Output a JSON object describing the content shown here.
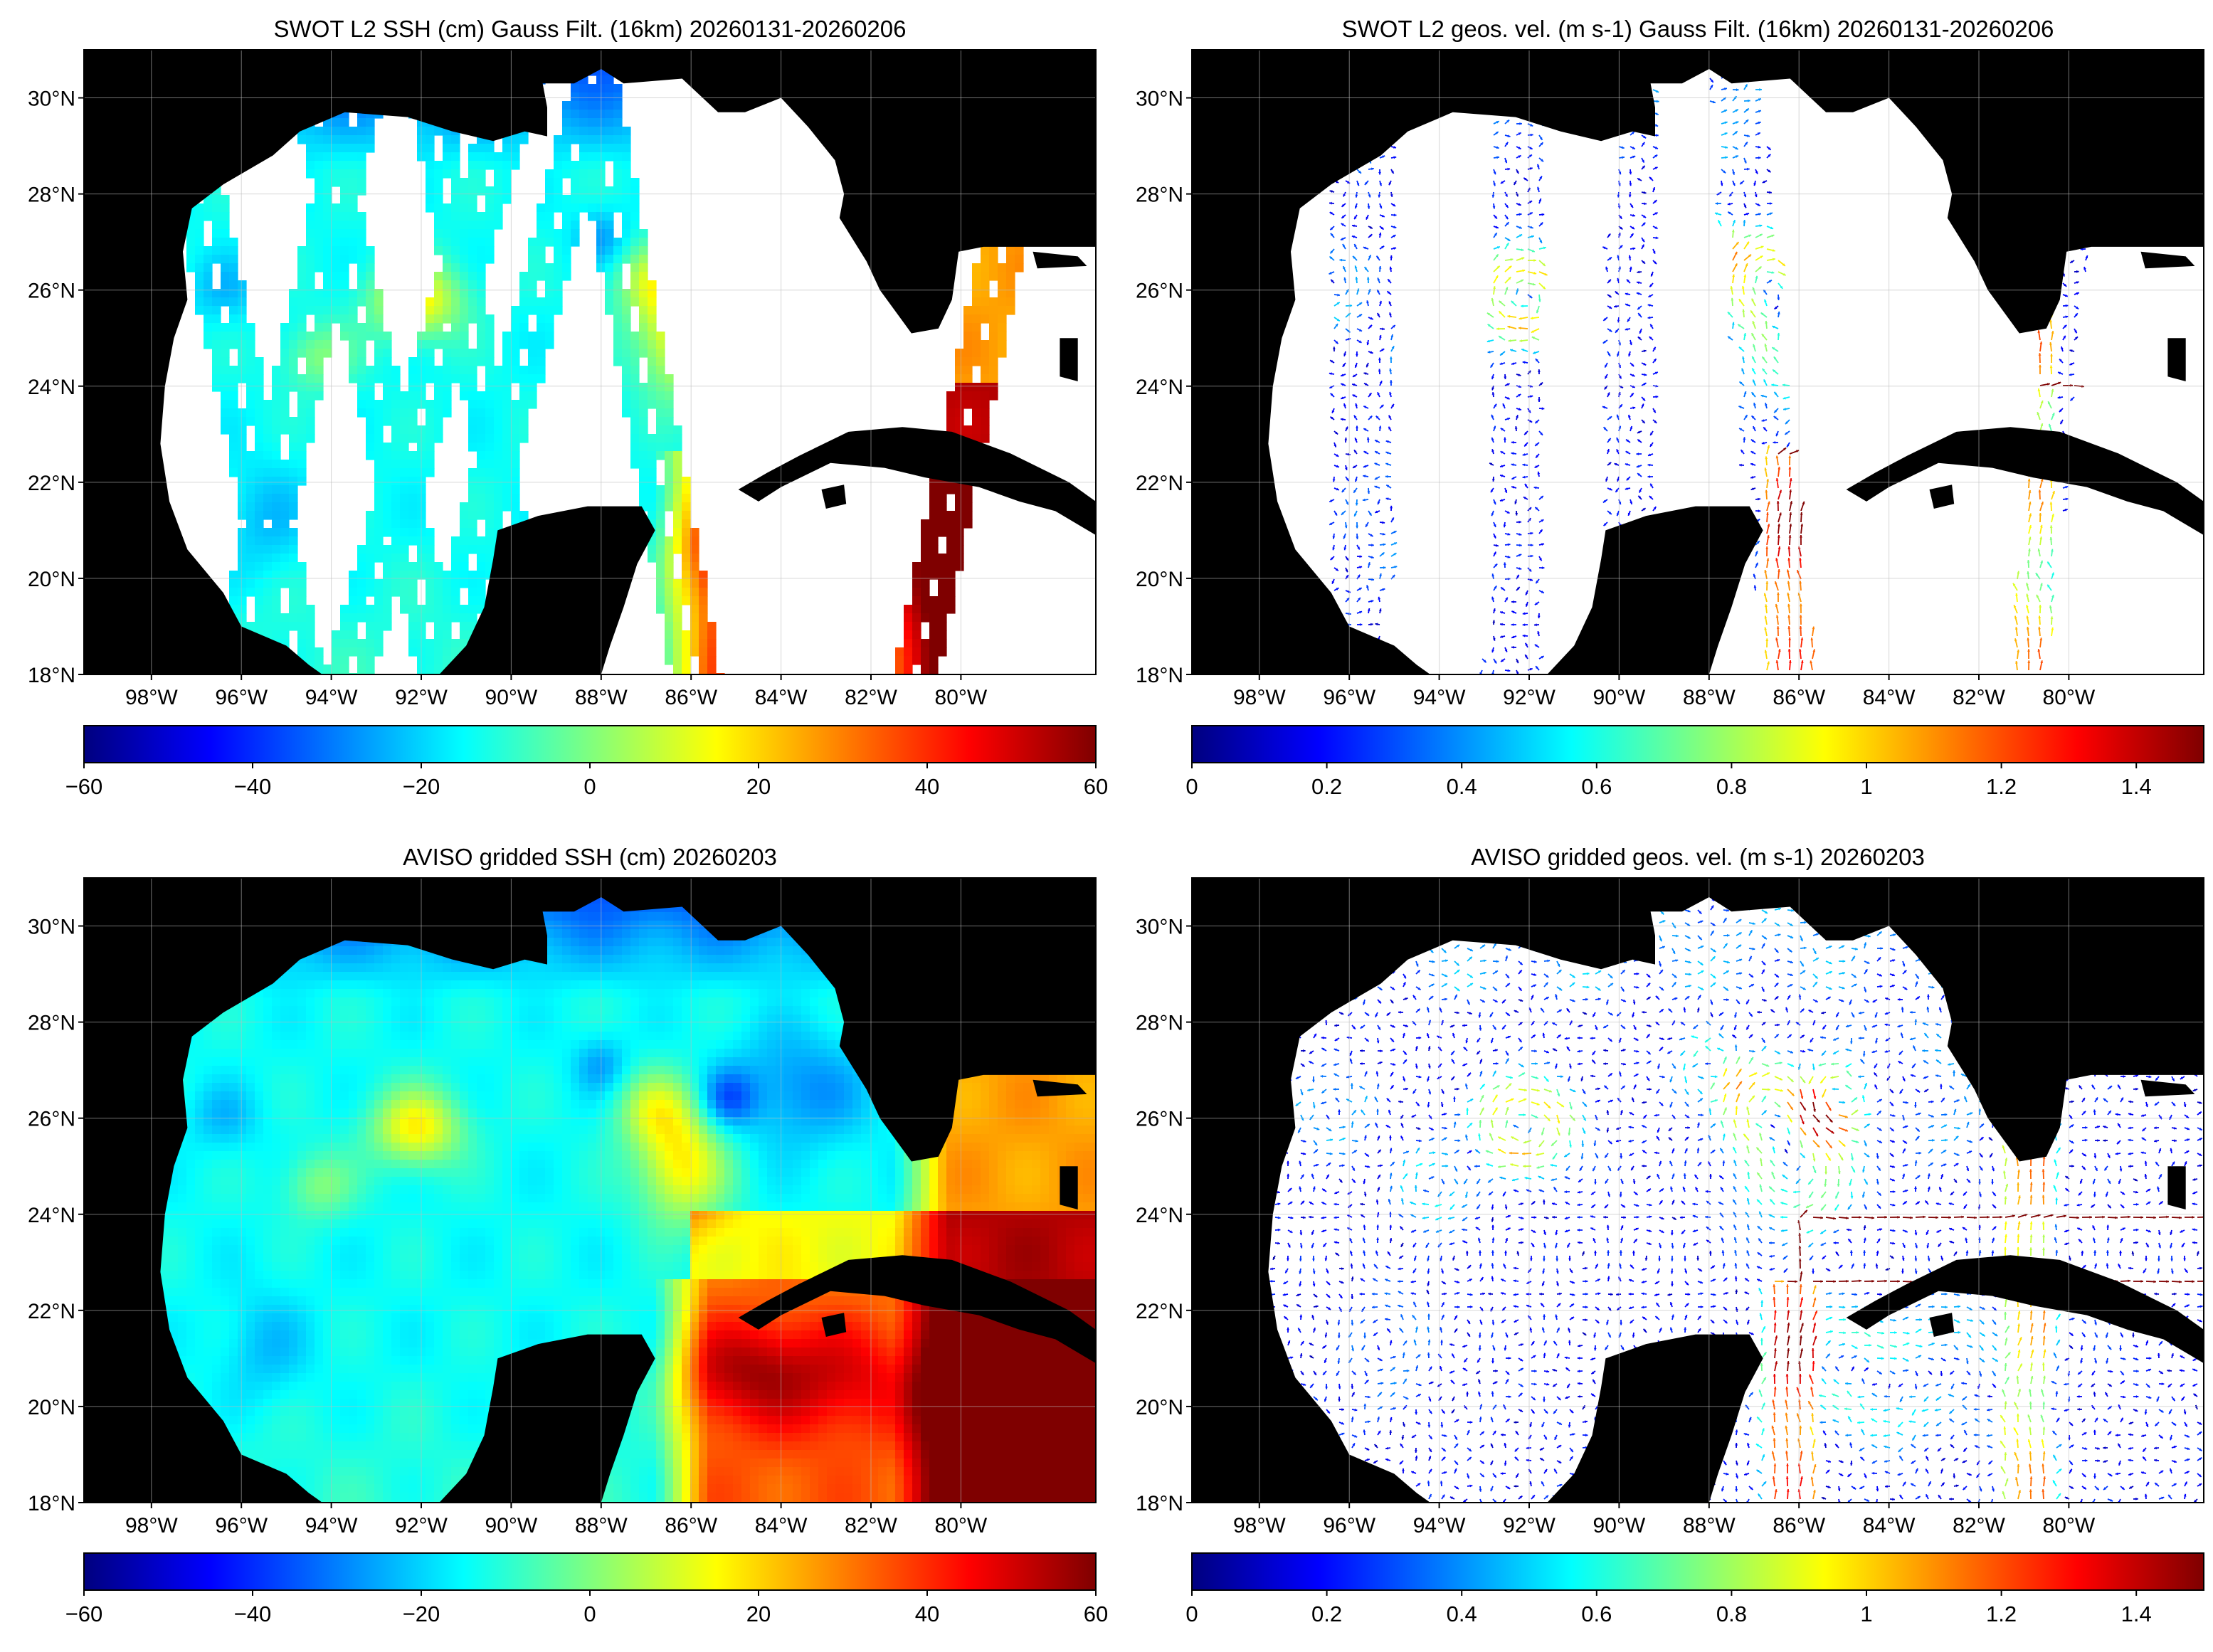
{
  "figure": {
    "panels": [
      {
        "id": "swot-ssh",
        "title": "SWOT L2 SSH (cm) Gauss Filt. (16km) 20260131-20260206",
        "kind": "ssh-swaths",
        "colorbar": {
          "min": -60,
          "max": 60,
          "ticks": [
            "−60",
            "−40",
            "−20",
            "0",
            "20",
            "40",
            "60"
          ]
        }
      },
      {
        "id": "swot-vel",
        "title": "SWOT L2 geos. vel. (m s-1) Gauss Filt. (16km) 20260131-20260206",
        "kind": "vel-swaths",
        "colorbar": {
          "min": 0,
          "max": 1.5,
          "ticks": [
            "0",
            "0.2",
            "0.4",
            "0.6",
            "0.8",
            "1",
            "1.2",
            "1.4"
          ]
        }
      },
      {
        "id": "aviso-ssh",
        "title": "AVISO gridded SSH (cm) 20260203",
        "kind": "ssh-grid",
        "colorbar": {
          "min": -60,
          "max": 60,
          "ticks": [
            "−60",
            "−40",
            "−20",
            "0",
            "20",
            "40",
            "60"
          ]
        }
      },
      {
        "id": "aviso-vel",
        "title": "AVISO gridded geos. vel. (m s-1)  20260203",
        "kind": "vel-grid",
        "colorbar": {
          "min": 0,
          "max": 1.5,
          "ticks": [
            "0",
            "0.2",
            "0.4",
            "0.6",
            "0.8",
            "1",
            "1.2",
            "1.4"
          ]
        }
      }
    ],
    "map_extent": {
      "lon": [
        -99.5,
        -77
      ],
      "lat": [
        18,
        31
      ]
    },
    "lat_ticks": [
      {
        "value": 30,
        "label": "30°N"
      },
      {
        "value": 28,
        "label": "28°N"
      },
      {
        "value": 26,
        "label": "26°N"
      },
      {
        "value": 24,
        "label": "24°N"
      },
      {
        "value": 22,
        "label": "22°N"
      },
      {
        "value": 20,
        "label": "20°N"
      },
      {
        "value": 18,
        "label": "18°N"
      }
    ],
    "lon_ticks": [
      {
        "value": -98,
        "label": "98°W"
      },
      {
        "value": -96,
        "label": "96°W"
      },
      {
        "value": -94,
        "label": "94°W"
      },
      {
        "value": -92,
        "label": "92°W"
      },
      {
        "value": -90,
        "label": "90°W"
      },
      {
        "value": -88,
        "label": "88°W"
      },
      {
        "value": -86,
        "label": "86°W"
      },
      {
        "value": -84,
        "label": "84°W"
      },
      {
        "value": -82,
        "label": "82°W"
      },
      {
        "value": -80,
        "label": "80°W"
      }
    ],
    "colors": {
      "land": "#000000",
      "no_data": "#ffffff",
      "grid": "#bdbdbd",
      "jet": [
        "#00007f",
        "#0000ff",
        "#007fff",
        "#00ffff",
        "#7fff7f",
        "#ffff00",
        "#ff7f00",
        "#ff0000",
        "#7f0000"
      ]
    }
  }
}
